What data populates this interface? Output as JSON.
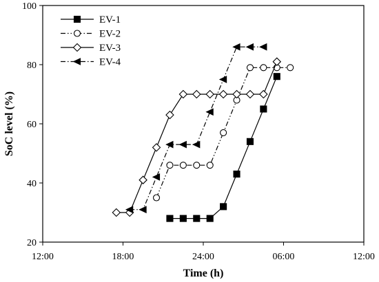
{
  "chart_data": {
    "type": "line",
    "title": "",
    "xlabel": "Time (h)",
    "ylabel": "SoC level (%)",
    "x_unit": "hours on a clock axis starting 12:00; values past 24:00 are the next day",
    "xlim": [
      12,
      36
    ],
    "ylim": [
      20,
      100
    ],
    "x_ticks": [
      12,
      18,
      24,
      30,
      36
    ],
    "x_tick_labels": [
      "12:00",
      "18:00",
      "24:00",
      "06:00",
      "12:00"
    ],
    "y_ticks": [
      20,
      40,
      60,
      80,
      100
    ],
    "y_tick_labels": [
      "20",
      "40",
      "60",
      "80",
      "100"
    ],
    "grid": false,
    "legend_position": "top-left",
    "series": [
      {
        "name": "EV-1",
        "marker": "filled-square",
        "line_style": "solid",
        "color": "#000000",
        "x": [
          21.5,
          22.5,
          23.5,
          24.5,
          25.5,
          26.5,
          27.5,
          28.5,
          29.5
        ],
        "y": [
          28,
          28,
          28,
          28,
          32,
          43,
          54,
          65,
          76
        ]
      },
      {
        "name": "EV-2",
        "marker": "open-circle",
        "line_style": "dash-dot-dot",
        "color": "#000000",
        "x": [
          20.5,
          21.5,
          22.5,
          23.5,
          24.5,
          25.5,
          26.5,
          27.5,
          28.5,
          29.5,
          30.5
        ],
        "y": [
          35,
          46,
          46,
          46,
          46,
          57,
          68,
          79,
          79,
          79,
          79
        ]
      },
      {
        "name": "EV-3",
        "marker": "open-diamond",
        "line_style": "solid",
        "color": "#000000",
        "x": [
          17.5,
          18.5,
          19.5,
          20.5,
          21.5,
          22.5,
          23.5,
          24.5,
          25.5,
          26.5,
          27.5,
          28.5,
          29.5
        ],
        "y": [
          30,
          30,
          41,
          52,
          63,
          70,
          70,
          70,
          70,
          70,
          70,
          70,
          81
        ]
      },
      {
        "name": "EV-4",
        "marker": "filled-left-triangle",
        "line_style": "dash-dot",
        "color": "#000000",
        "x": [
          18.5,
          19.5,
          20.5,
          21.5,
          22.5,
          23.5,
          24.5,
          25.5,
          26.5,
          27.5,
          28.5
        ],
        "y": [
          31,
          31,
          42,
          53,
          53,
          53,
          64,
          75,
          86,
          86,
          86
        ]
      }
    ]
  }
}
